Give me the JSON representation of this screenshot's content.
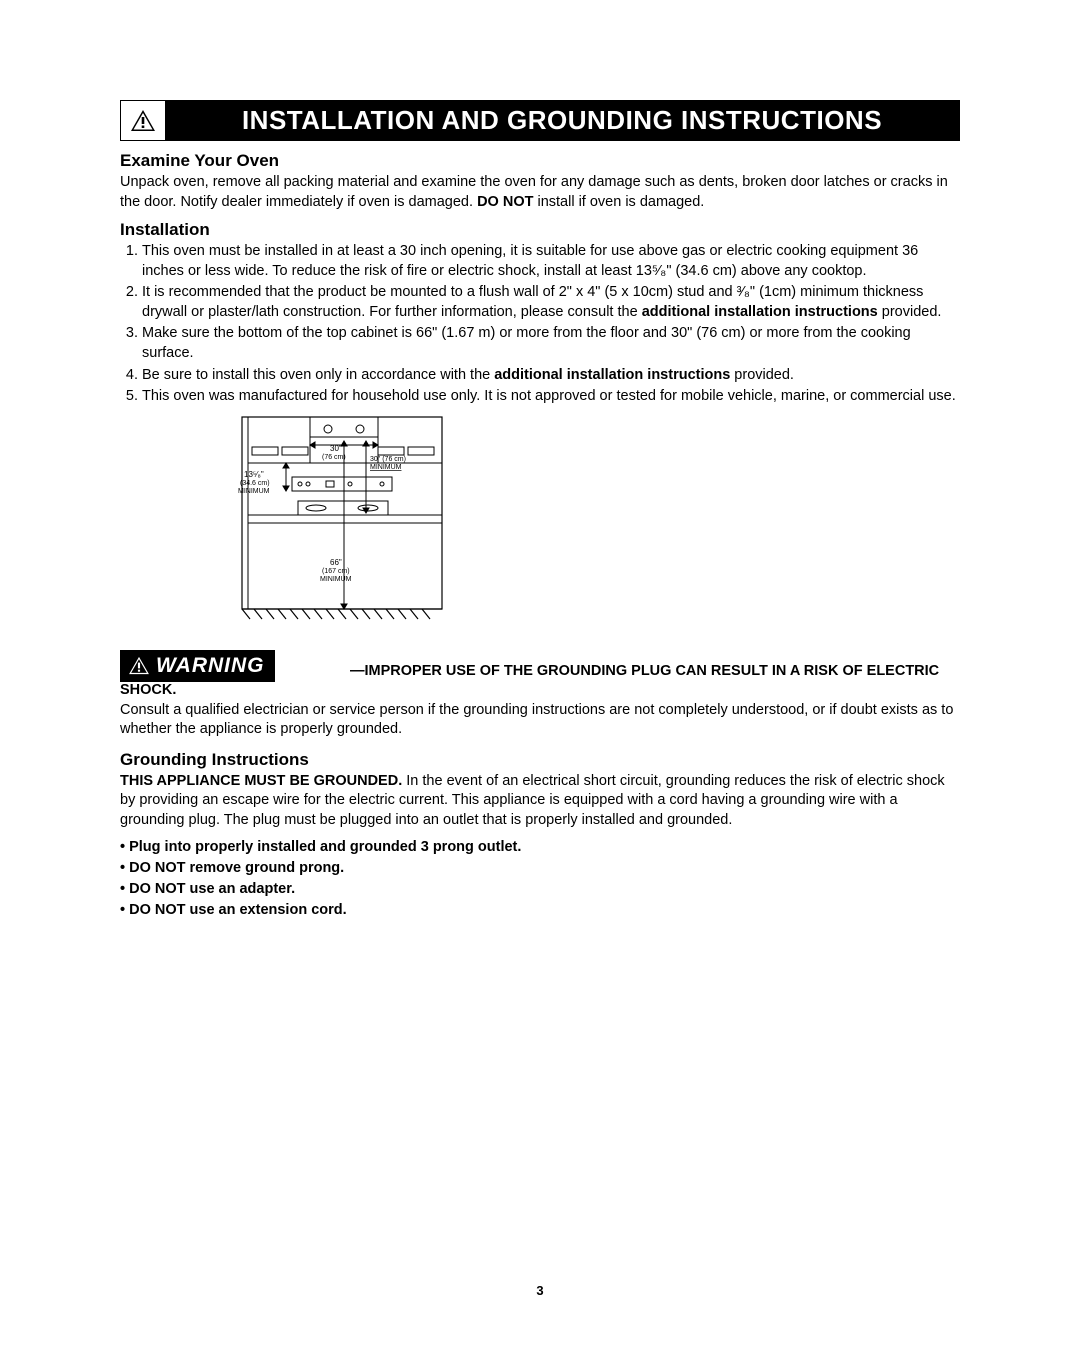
{
  "header": {
    "title": "INSTALLATION AND GROUNDING INSTRUCTIONS"
  },
  "examine": {
    "heading": "Examine Your Oven",
    "text_a": "Unpack oven, remove all packing material and examine the oven for any damage such as dents, broken door latches or cracks in the door. Notify dealer immediately if oven is damaged. ",
    "text_b": "DO NOT",
    "text_c": " install if oven is damaged."
  },
  "install": {
    "heading": "Installation",
    "items": [
      "This oven must be installed in at least a 30 inch opening, it is suitable for use above gas or electric cooking equipment 36 inches or less wide. To reduce the risk of fire or electric shock, install at least 13⁵⁄₈\" (34.6 cm) above any cooktop.",
      "It is recommended that the product be mounted to a flush wall of 2\" x 4\" (5 x 10cm) stud and ³⁄₈\" (1cm) minimum thickness drywall or plaster/lath construction. For further information, please consult the <b>additional installation instructions</b> provided.",
      "Make sure the bottom of the top cabinet is 66\" (1.67 m) or more from the floor and 30\" (76 cm) or more from the cooking surface.",
      "Be sure to install this oven only in accordance with the <b>additional installation instructions</b> provided.",
      "This oven was manufactured for household use only. It is not approved or tested for mobile vehicle, marine, or commercial use."
    ]
  },
  "diagram": {
    "label_30": "30\"",
    "label_76cm": "(76 cm)",
    "label_30m": "30\" (76 cm)",
    "label_min": "MINIMUM",
    "label_1358": "13⁵⁄₈\"",
    "label_346": "(34.6 cm)",
    "label_66": "66\"",
    "label_167": "(167 cm)"
  },
  "warning": {
    "label": "WARNING",
    "text_a": "—IMPROPER USE OF THE GROUNDING PLUG CAN RESULT IN A RISK OF ELECTRIC SHOCK.",
    "text_b": "Consult a qualified electrician or service person if the grounding instructions are not completely understood, or if doubt exists as to whether the appliance is properly grounded."
  },
  "grounding": {
    "heading": "Grounding Instructions",
    "lead_a": "THIS APPLIANCE MUST BE GROUNDED.",
    "lead_b": " In the event of an electrical short circuit, grounding reduces the risk of electric shock by providing an escape wire for the electric current. This appliance is equipped with a cord having a grounding wire with a grounding plug. The plug must be plugged into an outlet that is properly installed and grounded.",
    "bullets": [
      "Plug into properly installed and grounded 3 prong outlet.",
      "DO NOT remove ground prong.",
      "DO NOT use an adapter.",
      "DO NOT use an extension cord."
    ]
  },
  "page": "3"
}
